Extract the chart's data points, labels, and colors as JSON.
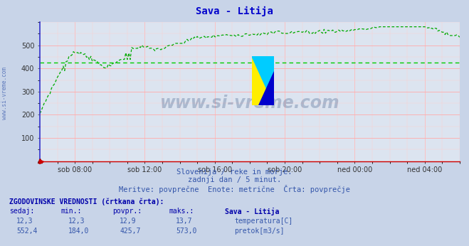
{
  "title": "Sava - Litija",
  "title_color": "#0000cc",
  "bg_color": "#c8d4e8",
  "plot_bg_color": "#dce4f0",
  "left_spine_color": "#3333cc",
  "bottom_spine_color": "#cc0000",
  "grid_color_h": "#ffaaaa",
  "grid_color_v": "#ffbbbb",
  "line_color": "#00aa00",
  "avg_line_color": "#00cc00",
  "avg_value": 425.7,
  "ylim": [
    0,
    600
  ],
  "yticks": [
    100,
    200,
    300,
    400,
    500
  ],
  "xlabel_ticks": [
    "sob 08:00",
    "sob 12:00",
    "sob 16:00",
    "sob 20:00",
    "ned 00:00",
    "ned 04:00"
  ],
  "subtitle1": "Slovenija / reke in morje.",
  "subtitle2": "zadnji dan / 5 minut.",
  "subtitle3": "Meritve: povprečne  Enote: metrične  Črta: povprečje",
  "legend_title": "ZGODOVINSKE VREDNOSTI (črtkana črta):",
  "col1": "sedaj:",
  "col2": "min.:",
  "col3": "povpr.:",
  "col4": "maks.:",
  "col5": "Sava - Litija",
  "row1_vals": [
    "12,3",
    "12,3",
    "12,9",
    "13,7"
  ],
  "row2_vals": [
    "552,4",
    "184,0",
    "425,7",
    "573,0"
  ],
  "row1_label": "temperatura[C]",
  "row2_label": "pretok[m3/s]",
  "row1_color": "#cc0000",
  "row2_color": "#00aa00",
  "watermark": "www.si-vreme.com",
  "watermark_color": "#1a3a6e",
  "watermark_alpha": 0.25,
  "ylabel_text": "www.si-vreme.com",
  "ylabel_color": "#3355aa",
  "text_color": "#3355aa",
  "header_color": "#0000aa"
}
